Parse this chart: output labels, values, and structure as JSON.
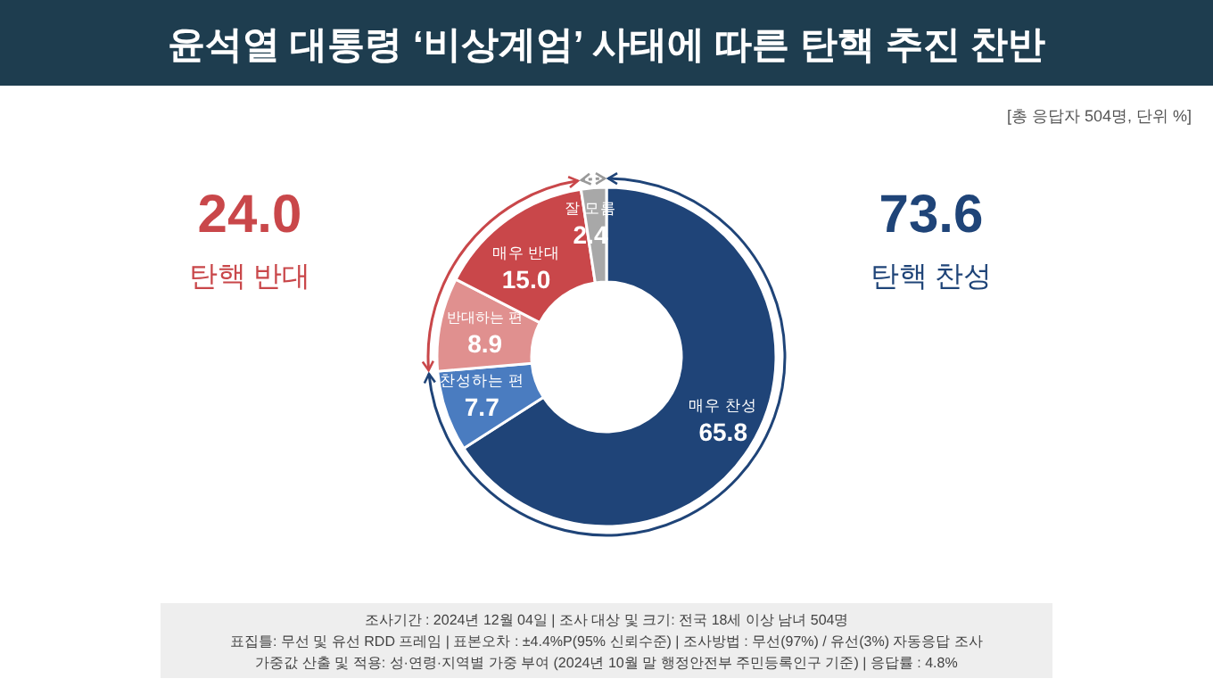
{
  "chart_data": {
    "type": "donut",
    "title": "윤석열 대통령 ‘비상계엄’ 사태에 따른 탄핵 추진 찬반",
    "subtitle": "[총 응답자 504명, 단위 %]",
    "categories": [
      "매우 찬성",
      "찬성하는 편",
      "반대하는 편",
      "매우 반대",
      "잘 모름"
    ],
    "values": [
      65.8,
      7.7,
      8.9,
      15.0,
      2.4
    ],
    "colors": [
      "#1f4478",
      "#4a7cc0",
      "#e0908f",
      "#c9474a",
      "#a8a8a8"
    ],
    "value_labels": [
      "65.8",
      "7.7",
      "8.9",
      "15.0",
      "2.4"
    ],
    "data_labels": true,
    "annotations": [
      "24.0",
      "탄핵 반대",
      "73.6",
      "탄핵 찬성",
      "조사기간 : 2024년 12월 04일 | 조사 대상 및 크기: 전국 18세 이상 남녀 504명",
      "표집틀: 무선 및 유선 RDD 프레임 | 표본오차 : ±4.4%P(95% 신뢰수준) | 조사방법 : 무선(97%) / 유선(3%) 자동응답 조사",
      "가중값 산출 및 적용: 성·연령·지역별 가중 부여 (2024년 10월 말 행정안전부 주민등록인구 기준) | 응답률 : 4.8%"
    ]
  }
}
